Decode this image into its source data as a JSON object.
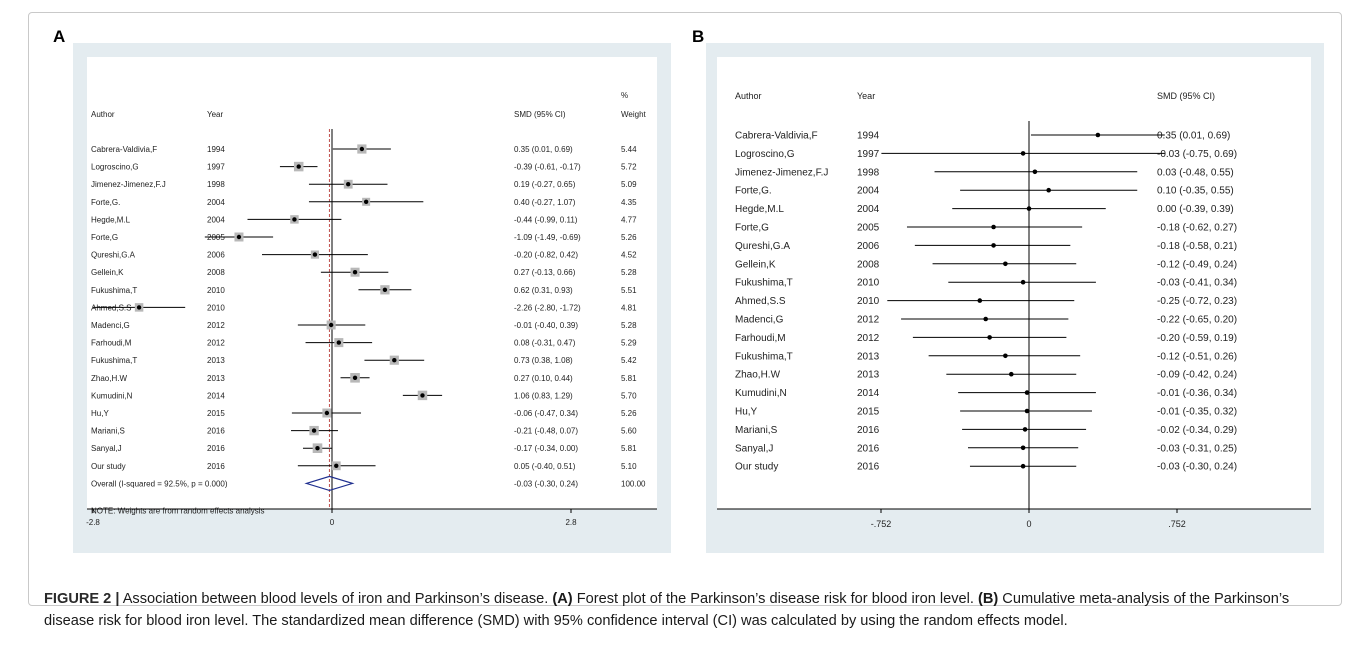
{
  "figure": {
    "panel_a_letter": "A",
    "panel_b_letter": "B",
    "caption": {
      "label": "FIGURE 2 |",
      "text1": " Association between blood levels of iron and Parkinson’s disease. ",
      "bold_a": "(A)",
      "text2": " Forest plot of the Parkinson’s disease risk for blood iron level. ",
      "bold_b": "(B)",
      "text3": " Cumulative meta-analysis of the Parkinson’s disease risk for blood iron level. The standardized mean difference (SMD) with 95% confidence interval (CI) was calculated by using the random effects model."
    }
  },
  "chart_data": [
    {
      "type": "forest",
      "panel": "A",
      "columns": {
        "author": "Author",
        "year": "Year",
        "smd": "SMD (95% CI)",
        "weight_top": "%",
        "weight": "Weight"
      },
      "xticks": [
        -2.8,
        0,
        2.8
      ],
      "xtick_labels": [
        "-2.8",
        "0",
        "2.8"
      ],
      "xlim": [
        -2.8,
        2.8
      ],
      "null_line": 0,
      "overall_line": -0.03,
      "studies": [
        {
          "author": "Cabrera-Valdivia,F",
          "year": "1994",
          "est": 0.35,
          "lo": 0.01,
          "hi": 0.69,
          "ci_text": "0.35 (0.01, 0.69)",
          "weight": "5.44",
          "w": 5.44
        },
        {
          "author": "Logroscino,G",
          "year": "1997",
          "est": -0.39,
          "lo": -0.61,
          "hi": -0.17,
          "ci_text": "-0.39 (-0.61, -0.17)",
          "weight": "5.72",
          "w": 5.72
        },
        {
          "author": "Jimenez-Jimenez,F.J",
          "year": "1998",
          "est": 0.19,
          "lo": -0.27,
          "hi": 0.65,
          "ci_text": "0.19 (-0.27, 0.65)",
          "weight": "5.09",
          "w": 5.09
        },
        {
          "author": "Forte,G.",
          "year": "2004",
          "est": 0.4,
          "lo": -0.27,
          "hi": 1.07,
          "ci_text": "0.40 (-0.27, 1.07)",
          "weight": "4.35",
          "w": 4.35
        },
        {
          "author": "Hegde,M.L",
          "year": "2004",
          "est": -0.44,
          "lo": -0.99,
          "hi": 0.11,
          "ci_text": "-0.44 (-0.99, 0.11)",
          "weight": "4.77",
          "w": 4.77
        },
        {
          "author": "Forte,G",
          "year": "2005",
          "est": -1.09,
          "lo": -1.49,
          "hi": -0.69,
          "ci_text": "-1.09 (-1.49, -0.69)",
          "weight": "5.26",
          "w": 5.26
        },
        {
          "author": "Qureshi,G.A",
          "year": "2006",
          "est": -0.2,
          "lo": -0.82,
          "hi": 0.42,
          "ci_text": "-0.20 (-0.82, 0.42)",
          "weight": "4.52",
          "w": 4.52
        },
        {
          "author": "Gellein,K",
          "year": "2008",
          "est": 0.27,
          "lo": -0.13,
          "hi": 0.66,
          "ci_text": "0.27 (-0.13, 0.66)",
          "weight": "5.28",
          "w": 5.28
        },
        {
          "author": "Fukushima,T",
          "year": "2010",
          "est": 0.62,
          "lo": 0.31,
          "hi": 0.93,
          "ci_text": "0.62 (0.31, 0.93)",
          "weight": "5.51",
          "w": 5.51
        },
        {
          "author": "Ahmed,S.S",
          "year": "2010",
          "est": -2.26,
          "lo": -2.8,
          "hi": -1.72,
          "ci_text": "-2.26 (-2.80, -1.72)",
          "weight": "4.81",
          "w": 4.81
        },
        {
          "author": "Madenci,G",
          "year": "2012",
          "est": -0.01,
          "lo": -0.4,
          "hi": 0.39,
          "ci_text": "-0.01 (-0.40, 0.39)",
          "weight": "5.28",
          "w": 5.28
        },
        {
          "author": "Farhoudi,M",
          "year": "2012",
          "est": 0.08,
          "lo": -0.31,
          "hi": 0.47,
          "ci_text": "0.08 (-0.31, 0.47)",
          "weight": "5.29",
          "w": 5.29
        },
        {
          "author": "Fukushima,T",
          "year": "2013",
          "est": 0.73,
          "lo": 0.38,
          "hi": 1.08,
          "ci_text": "0.73 (0.38, 1.08)",
          "weight": "5.42",
          "w": 5.42
        },
        {
          "author": "Zhao,H.W",
          "year": "2013",
          "est": 0.27,
          "lo": 0.1,
          "hi": 0.44,
          "ci_text": "0.27 (0.10, 0.44)",
          "weight": "5.81",
          "w": 5.81
        },
        {
          "author": "Kumudini,N",
          "year": "2014",
          "est": 1.06,
          "lo": 0.83,
          "hi": 1.29,
          "ci_text": "1.06 (0.83, 1.29)",
          "weight": "5.70",
          "w": 5.7
        },
        {
          "author": "Hu,Y",
          "year": "2015",
          "est": -0.06,
          "lo": -0.47,
          "hi": 0.34,
          "ci_text": "-0.06 (-0.47, 0.34)",
          "weight": "5.26",
          "w": 5.26
        },
        {
          "author": "Mariani,S",
          "year": "2016",
          "est": -0.21,
          "lo": -0.48,
          "hi": 0.07,
          "ci_text": "-0.21 (-0.48, 0.07)",
          "weight": "5.60",
          "w": 5.6
        },
        {
          "author": "Sanyal,J",
          "year": "2016",
          "est": -0.17,
          "lo": -0.34,
          "hi": 0.0,
          "ci_text": "-0.17 (-0.34, 0.00)",
          "weight": "5.81",
          "w": 5.81
        },
        {
          "author": "Our study",
          "year": "2016",
          "est": 0.05,
          "lo": -0.4,
          "hi": 0.51,
          "ci_text": "0.05 (-0.40, 0.51)",
          "weight": "5.10",
          "w": 5.1
        }
      ],
      "overall": {
        "label": "Overall  (I-squared = 92.5%, p = 0.000)",
        "est": -0.03,
        "lo": -0.3,
        "hi": 0.24,
        "ci_text": "-0.03 (-0.30, 0.24)",
        "weight": "100.00"
      },
      "note": "NOTE: Weights are from random effects analysis",
      "colors": {
        "background": "#e4ecf0",
        "plot": "#ffffff",
        "diamond": "#1f2f8f",
        "overall_line": "#c0504d"
      }
    },
    {
      "type": "forest",
      "panel": "B",
      "columns": {
        "author": "Author",
        "year": "Year",
        "smd": "SMD (95% CI)"
      },
      "xticks": [
        -0.752,
        0,
        0.752
      ],
      "xtick_labels": [
        "-.752",
        "0",
        ".752"
      ],
      "xlim": [
        -0.752,
        0.752
      ],
      "null_line": 0,
      "studies": [
        {
          "author": "Cabrera-Valdivia,F",
          "year": "1994",
          "est": 0.35,
          "lo": 0.01,
          "hi": 0.69,
          "ci_text": "0.35 (0.01, 0.69)"
        },
        {
          "author": "Logroscino,G",
          "year": "1997",
          "est": -0.03,
          "lo": -0.75,
          "hi": 0.69,
          "ci_text": "-0.03 (-0.75, 0.69)"
        },
        {
          "author": "Jimenez-Jimenez,F.J",
          "year": "1998",
          "est": 0.03,
          "lo": -0.48,
          "hi": 0.55,
          "ci_text": "0.03 (-0.48, 0.55)"
        },
        {
          "author": "Forte,G.",
          "year": "2004",
          "est": 0.1,
          "lo": -0.35,
          "hi": 0.55,
          "ci_text": "0.10 (-0.35, 0.55)"
        },
        {
          "author": "Hegde,M.L",
          "year": "2004",
          "est": 0.0,
          "lo": -0.39,
          "hi": 0.39,
          "ci_text": "0.00 (-0.39, 0.39)"
        },
        {
          "author": "Forte,G",
          "year": "2005",
          "est": -0.18,
          "lo": -0.62,
          "hi": 0.27,
          "ci_text": "-0.18 (-0.62, 0.27)"
        },
        {
          "author": "Qureshi,G.A",
          "year": "2006",
          "est": -0.18,
          "lo": -0.58,
          "hi": 0.21,
          "ci_text": "-0.18 (-0.58, 0.21)"
        },
        {
          "author": "Gellein,K",
          "year": "2008",
          "est": -0.12,
          "lo": -0.49,
          "hi": 0.24,
          "ci_text": "-0.12 (-0.49, 0.24)"
        },
        {
          "author": "Fukushima,T",
          "year": "2010",
          "est": -0.03,
          "lo": -0.41,
          "hi": 0.34,
          "ci_text": "-0.03 (-0.41, 0.34)"
        },
        {
          "author": "Ahmed,S.S",
          "year": "2010",
          "est": -0.25,
          "lo": -0.72,
          "hi": 0.23,
          "ci_text": "-0.25 (-0.72, 0.23)"
        },
        {
          "author": "Madenci,G",
          "year": "2012",
          "est": -0.22,
          "lo": -0.65,
          "hi": 0.2,
          "ci_text": "-0.22 (-0.65, 0.20)"
        },
        {
          "author": "Farhoudi,M",
          "year": "2012",
          "est": -0.2,
          "lo": -0.59,
          "hi": 0.19,
          "ci_text": "-0.20 (-0.59, 0.19)"
        },
        {
          "author": "Fukushima,T",
          "year": "2013",
          "est": -0.12,
          "lo": -0.51,
          "hi": 0.26,
          "ci_text": "-0.12 (-0.51, 0.26)"
        },
        {
          "author": "Zhao,H.W",
          "year": "2013",
          "est": -0.09,
          "lo": -0.42,
          "hi": 0.24,
          "ci_text": "-0.09 (-0.42, 0.24)"
        },
        {
          "author": "Kumudini,N",
          "year": "2014",
          "est": -0.01,
          "lo": -0.36,
          "hi": 0.34,
          "ci_text": "-0.01 (-0.36, 0.34)"
        },
        {
          "author": "Hu,Y",
          "year": "2015",
          "est": -0.01,
          "lo": -0.35,
          "hi": 0.32,
          "ci_text": "-0.01 (-0.35, 0.32)"
        },
        {
          "author": "Mariani,S",
          "year": "2016",
          "est": -0.02,
          "lo": -0.34,
          "hi": 0.29,
          "ci_text": "-0.02 (-0.34, 0.29)"
        },
        {
          "author": "Sanyal,J",
          "year": "2016",
          "est": -0.03,
          "lo": -0.31,
          "hi": 0.25,
          "ci_text": "-0.03 (-0.31, 0.25)"
        },
        {
          "author": "Our study",
          "year": "2016",
          "est": -0.03,
          "lo": -0.3,
          "hi": 0.24,
          "ci_text": "-0.03 (-0.30, 0.24)"
        }
      ],
      "colors": {
        "background": "#e4ecf0",
        "plot": "#ffffff"
      }
    }
  ]
}
